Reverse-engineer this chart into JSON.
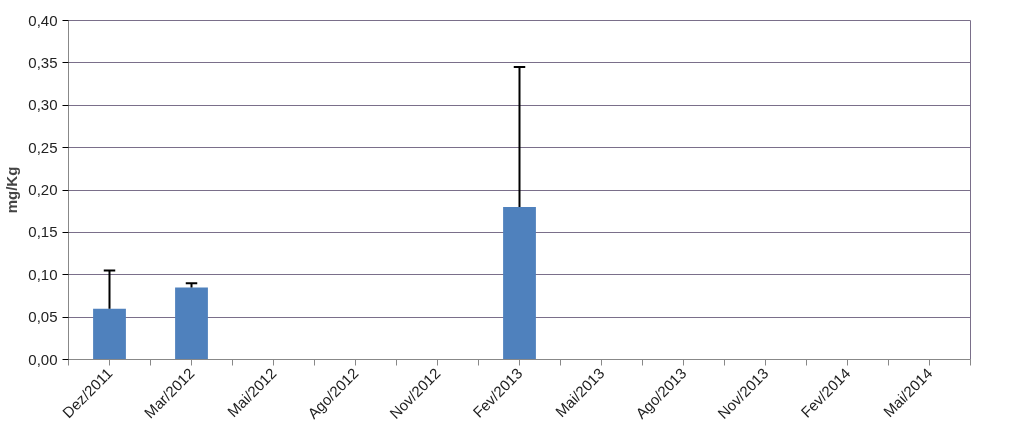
{
  "chart_data": {
    "type": "bar",
    "ylabel": "mg/Kg",
    "categories": [
      "Dez/2011",
      "Mar/2012",
      "Mai/2012",
      "Ago/2012",
      "Nov/2012",
      "Fev/2013",
      "Mai/2013",
      "Ago/2013",
      "Nov/2013",
      "Fev/2014",
      "Mai/2014"
    ],
    "values": [
      0.06,
      0.085,
      null,
      null,
      null,
      0.18,
      null,
      null,
      null,
      null,
      null
    ],
    "errors": [
      [
        0.06,
        0.105
      ],
      [
        0.085,
        0.09
      ],
      null,
      null,
      null,
      [
        0.18,
        0.345
      ],
      null,
      null,
      null,
      null,
      null
    ],
    "color": "#4f81bd",
    "ylim": [
      0,
      0.4
    ],
    "yticks": [
      {
        "value": 0,
        "label": "0,00"
      },
      {
        "value": 0.05,
        "label": "0,05"
      },
      {
        "value": 0.1,
        "label": "0,10"
      },
      {
        "value": 0.15,
        "label": "0,15"
      },
      {
        "value": 0.2,
        "label": "0,20"
      },
      {
        "value": 0.25,
        "label": "0,25"
      },
      {
        "value": 0.3,
        "label": "0,30"
      },
      {
        "value": 0.35,
        "label": "0,35"
      },
      {
        "value": 0.4,
        "label": "0,40"
      }
    ],
    "grid": "y"
  }
}
